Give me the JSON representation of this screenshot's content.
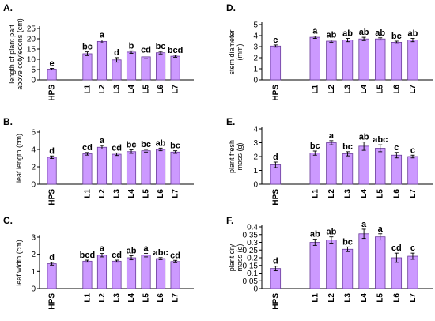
{
  "chart_data": [
    {
      "panel": "A.",
      "type": "bar",
      "ylabel_lines": [
        "length of plant part",
        "above cotyledons (cm)"
      ],
      "ylim": [
        0,
        25
      ],
      "yticks": [
        0,
        5,
        10,
        15,
        20,
        25
      ],
      "ytick_labels": [
        "0",
        "5",
        "10",
        "15",
        "20",
        "25"
      ],
      "categories": [
        "HPS",
        "L1",
        "L2",
        "L3",
        "L4",
        "L5",
        "L6",
        "L7"
      ],
      "values": [
        5.2,
        12.7,
        18.7,
        9.7,
        13.5,
        11.2,
        13.2,
        11.5
      ],
      "errors": [
        0.4,
        0.9,
        0.7,
        1.1,
        0.6,
        0.9,
        0.6,
        0.5
      ],
      "significance": [
        "e",
        "bc",
        "a",
        "d",
        "b",
        "cd",
        "bc",
        "bcd"
      ],
      "grid": false
    },
    {
      "panel": "D.",
      "type": "bar",
      "ylabel_lines": [
        "stem diameter",
        "(mm)"
      ],
      "ylim": [
        0,
        5
      ],
      "yticks": [
        0,
        1,
        2,
        3,
        4,
        5
      ],
      "ytick_labels": [
        "0",
        "1",
        "2",
        "3",
        "4",
        "5"
      ],
      "categories": [
        "HPS",
        "L1",
        "L2",
        "L3",
        "L4",
        "L5",
        "L6",
        "L7"
      ],
      "values": [
        3.05,
        3.85,
        3.5,
        3.6,
        3.7,
        3.7,
        3.4,
        3.6
      ],
      "errors": [
        0.1,
        0.1,
        0.1,
        0.15,
        0.15,
        0.1,
        0.1,
        0.15
      ],
      "significance": [
        "c",
        "a",
        "ab",
        "ab",
        "ab",
        "ab",
        "bc",
        "ab"
      ],
      "grid": false
    },
    {
      "panel": "B.",
      "type": "bar",
      "ylabel_lines": [
        "leaf length (cm)"
      ],
      "ylim": [
        0,
        6
      ],
      "yticks": [
        0,
        2,
        4,
        6
      ],
      "ytick_labels": [
        "0",
        "2",
        "4",
        "6"
      ],
      "categories": [
        "HPS",
        "L1",
        "L2",
        "L3",
        "L4",
        "L5",
        "L6",
        "L7"
      ],
      "values": [
        3.1,
        3.5,
        4.25,
        3.45,
        3.75,
        3.85,
        4.0,
        3.7
      ],
      "errors": [
        0.15,
        0.15,
        0.2,
        0.15,
        0.2,
        0.15,
        0.15,
        0.15
      ],
      "significance": [
        "d",
        "cd",
        "a",
        "cd",
        "bc",
        "bc",
        "ab",
        "bc"
      ],
      "grid": false
    },
    {
      "panel": "E.",
      "type": "bar",
      "ylabel_lines": [
        "plant fresh",
        "mass (g)"
      ],
      "ylim": [
        0,
        4
      ],
      "yticks": [
        0,
        1,
        2,
        3,
        4
      ],
      "ytick_labels": [
        "0",
        "1",
        "2",
        "3",
        "4"
      ],
      "categories": [
        "HPS",
        "L1",
        "L2",
        "L3",
        "L4",
        "L5",
        "L6",
        "L7"
      ],
      "values": [
        1.4,
        2.25,
        3.0,
        2.2,
        2.75,
        2.6,
        2.1,
        2.0
      ],
      "errors": [
        0.2,
        0.15,
        0.15,
        0.15,
        0.3,
        0.25,
        0.2,
        0.1
      ],
      "significance": [
        "d",
        "bc",
        "a",
        "bc",
        "ab",
        "abc",
        "c",
        "c"
      ],
      "grid": false
    },
    {
      "panel": "C.",
      "type": "bar",
      "ylabel_lines": [
        "leaf width (cm)"
      ],
      "ylim": [
        0,
        3
      ],
      "yticks": [
        0,
        1,
        2,
        3
      ],
      "ytick_labels": [
        "0",
        "1",
        "2",
        "3"
      ],
      "categories": [
        "HPS",
        "L1",
        "L2",
        "L3",
        "L4",
        "L5",
        "L6",
        "L7"
      ],
      "values": [
        1.45,
        1.6,
        1.95,
        1.6,
        1.8,
        1.95,
        1.75,
        1.58
      ],
      "errors": [
        0.08,
        0.06,
        0.1,
        0.06,
        0.12,
        0.1,
        0.06,
        0.07
      ],
      "significance": [
        "d",
        "bcd",
        "a",
        "cd",
        "ab",
        "a",
        "abc",
        "cd"
      ],
      "grid": false
    },
    {
      "panel": "F.",
      "type": "bar",
      "ylabel_lines": [
        "plant dry",
        "mass (g)"
      ],
      "ylim": [
        0,
        0.4
      ],
      "yticks": [
        0,
        0.05,
        0.1,
        0.15,
        0.2,
        0.25,
        0.3,
        0.35,
        0.4
      ],
      "ytick_labels": [
        "0",
        "0.05",
        "0.1",
        "0.15",
        "0.2",
        "0.25",
        "0.3",
        "0.35",
        "0.4"
      ],
      "categories": [
        "HPS",
        "L1",
        "L2",
        "L3",
        "L4",
        "L5",
        "L6",
        "L7"
      ],
      "values": [
        0.13,
        0.3,
        0.315,
        0.255,
        0.355,
        0.335,
        0.2,
        0.21
      ],
      "errors": [
        0.015,
        0.02,
        0.02,
        0.015,
        0.03,
        0.02,
        0.03,
        0.02
      ],
      "significance": [
        "d",
        "ab",
        "ab",
        "bc",
        "a",
        "a",
        "cd",
        "c"
      ],
      "grid": false
    }
  ],
  "colors": {
    "bar_fill": "#cc99ff",
    "bar_edge": "#6a3d9a",
    "axis": "#000000",
    "background": "#ffffff"
  }
}
